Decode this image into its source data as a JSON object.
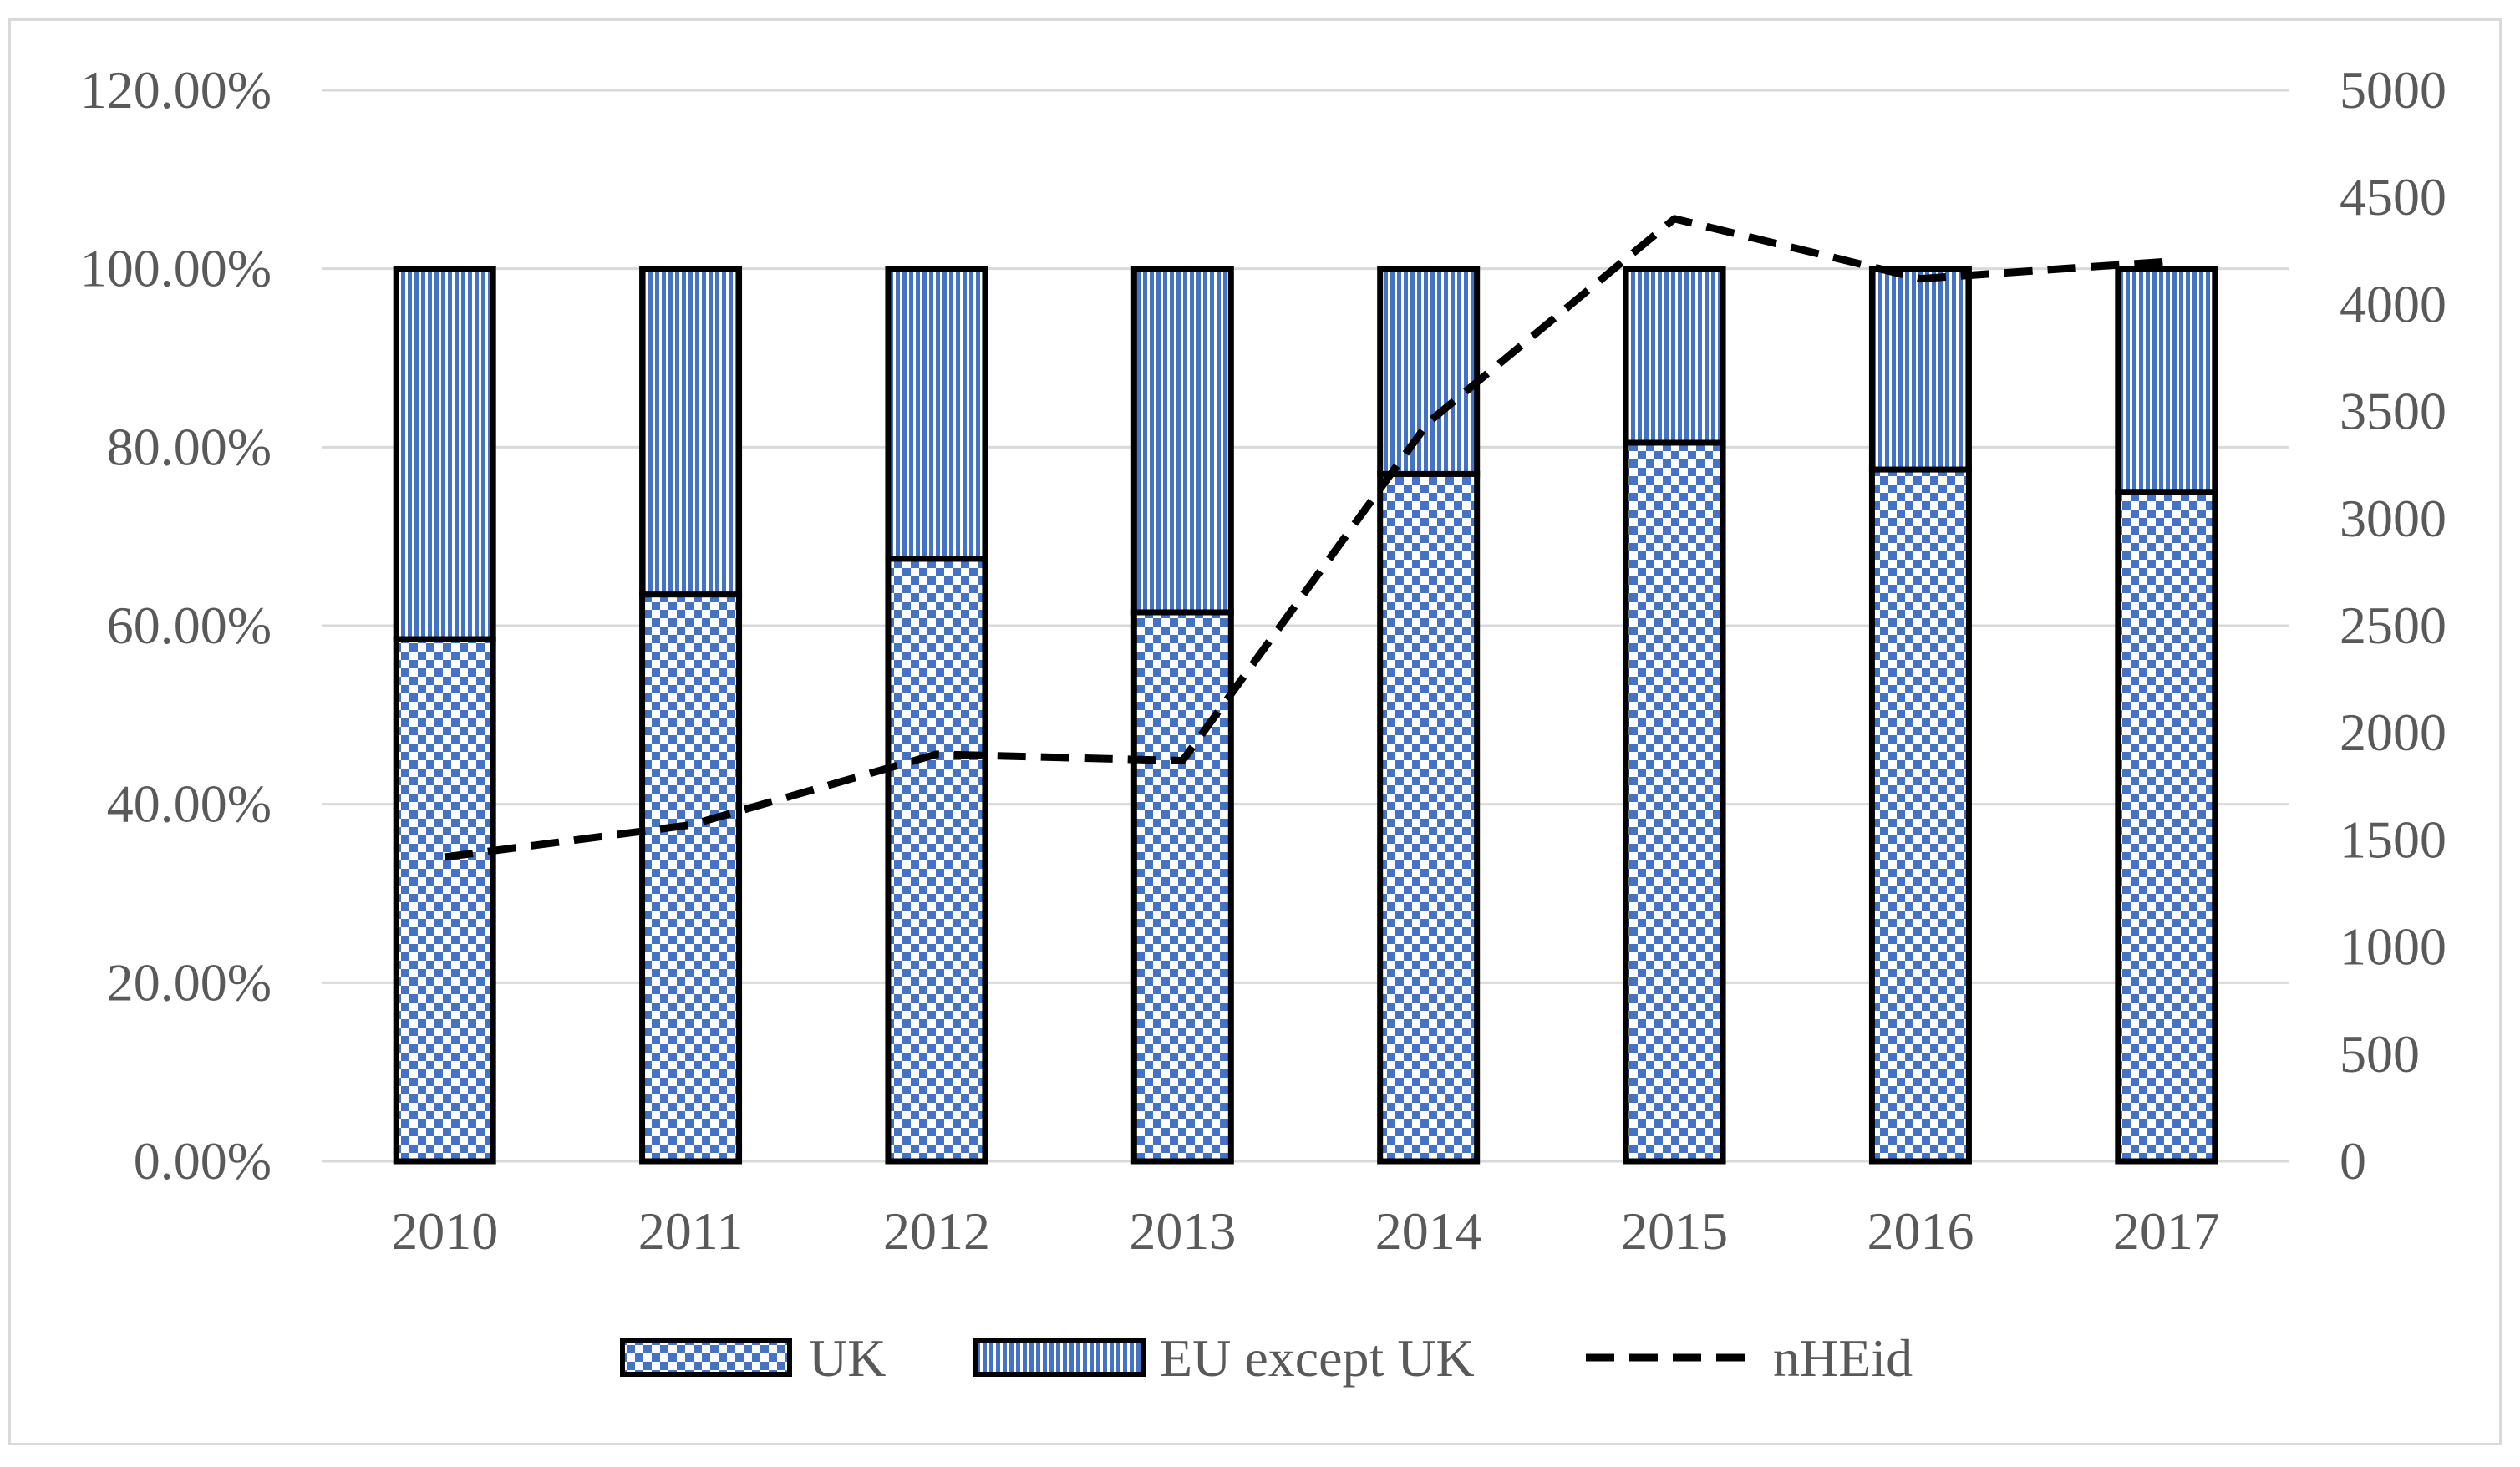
{
  "chart_data": {
    "type": "bar",
    "stacked": true,
    "percent_stacked": true,
    "categories": [
      "2010",
      "2011",
      "2012",
      "2013",
      "2014",
      "2015",
      "2016",
      "2017"
    ],
    "series": [
      {
        "name": "UK",
        "kind": "bar",
        "axis": "left",
        "pattern": "checker",
        "color": "#4472c4",
        "values": [
          58.5,
          63.5,
          67.5,
          61.5,
          77.0,
          80.5,
          77.5,
          75.0
        ]
      },
      {
        "name": "EU except UK",
        "kind": "bar",
        "axis": "left",
        "pattern": "vertical-stripes",
        "color": "#4472c4",
        "values": [
          41.5,
          36.5,
          32.5,
          38.5,
          23.0,
          19.5,
          22.5,
          25.0
        ]
      },
      {
        "name": "nHEid",
        "kind": "line",
        "axis": "right",
        "style": "dashed",
        "color": "#000000",
        "values": [
          1420,
          1570,
          1900,
          1870,
          3450,
          4400,
          4120,
          4200
        ]
      }
    ],
    "y_left": {
      "min": 0,
      "max": 120,
      "ticks": [
        "0.00%",
        "20.00%",
        "40.00%",
        "60.00%",
        "80.00%",
        "100.00%",
        "120.00%"
      ]
    },
    "y_right": {
      "min": 0,
      "max": 5000,
      "ticks": [
        "0",
        "500",
        "1000",
        "1500",
        "2000",
        "2500",
        "3000",
        "3500",
        "4000",
        "4500",
        "5000"
      ]
    },
    "grid": true,
    "legend": "bottom",
    "legend_labels": [
      "UK",
      "EU except UK",
      "nHEid"
    ]
  }
}
